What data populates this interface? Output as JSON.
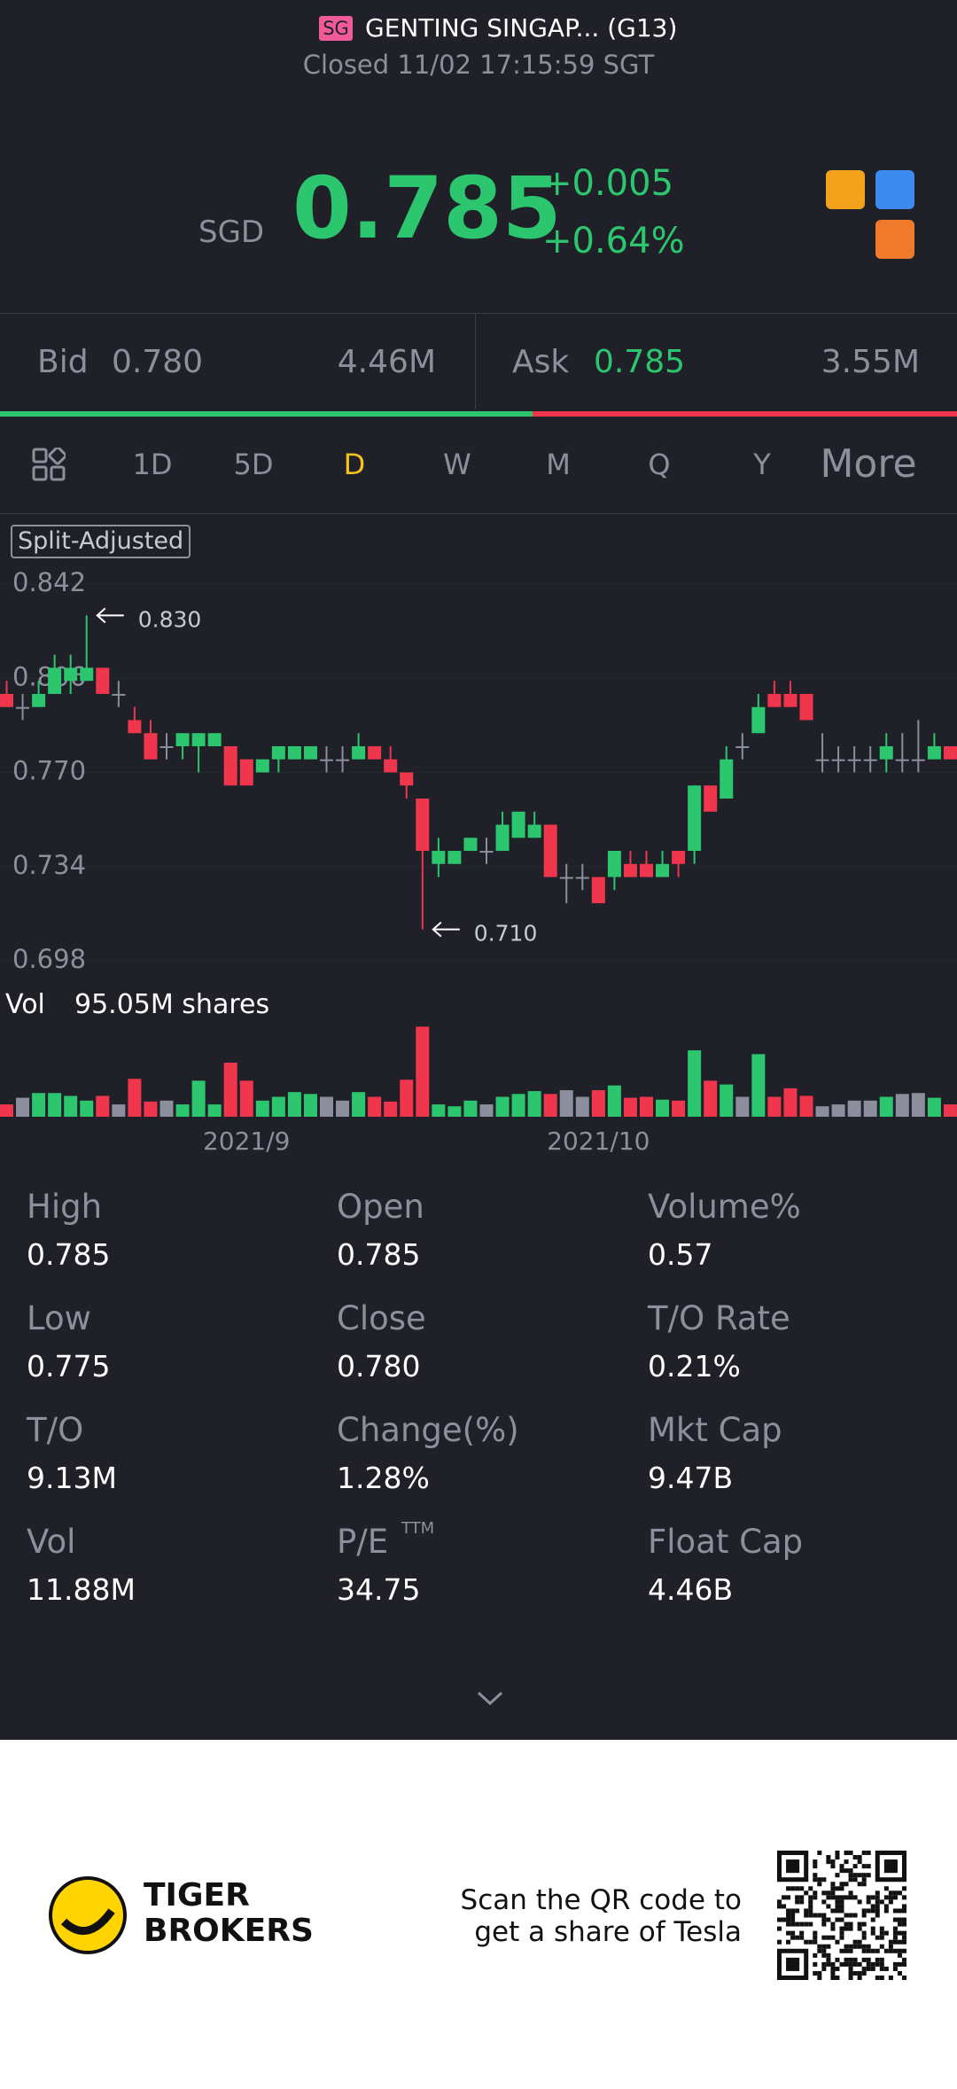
{
  "header": {
    "exchange": "SG",
    "title": "GENTING SINGAP... (G13)",
    "status": "Closed 11/02 17:15:59 SGT"
  },
  "quote": {
    "currency": "SGD",
    "price": "0.785",
    "change": "+0.005",
    "change_pct": "+0.64%"
  },
  "order_book": {
    "bid_label": "Bid",
    "bid": "0.780",
    "bid_size": "4.46M",
    "ask_label": "Ask",
    "ask": "0.785",
    "ask_size": "3.55M"
  },
  "tabs": [
    "1D",
    "5D",
    "D",
    "W",
    "M",
    "Q",
    "Y",
    "More"
  ],
  "active_tab": 2,
  "chart": {
    "type": "candlestick",
    "badge": "Split-Adjusted",
    "ylim": [
      0.698,
      0.842
    ],
    "yticks": [
      {
        "value": 0.842,
        "label": "0.842"
      },
      {
        "value": 0.806,
        "label": "0.806"
      },
      {
        "value": 0.77,
        "label": "0.770"
      },
      {
        "value": 0.734,
        "label": "0.734"
      },
      {
        "value": 0.698,
        "label": "0.698"
      }
    ],
    "high_marker": {
      "value": 0.83,
      "label": "0.830"
    },
    "low_marker": {
      "value": 0.71,
      "label": "0.710"
    },
    "up_color": "#2cc66e",
    "down_color": "#f0364c",
    "flat_color": "#8b8e9c",
    "categories": [
      null,
      null,
      null,
      null,
      null,
      null,
      null,
      null,
      null,
      null,
      null,
      null,
      null,
      null,
      null,
      "2021/9",
      null,
      null,
      null,
      null,
      null,
      null,
      null,
      null,
      null,
      null,
      null,
      null,
      null,
      null,
      null,
      null,
      null,
      null,
      null,
      null,
      null,
      "2021/10",
      null,
      null,
      null,
      null,
      null,
      null,
      null,
      null,
      null,
      null,
      null,
      null,
      null,
      null,
      null,
      null,
      null,
      null,
      null,
      null,
      null,
      null
    ],
    "open": [
      0.8,
      0.795,
      0.795,
      0.8,
      0.805,
      0.805,
      0.81,
      0.8,
      0.79,
      0.785,
      0.78,
      0.78,
      0.78,
      0.78,
      0.78,
      0.775,
      0.77,
      0.775,
      0.775,
      0.775,
      0.775,
      0.775,
      0.775,
      0.78,
      0.775,
      0.77,
      0.76,
      0.735,
      0.735,
      0.74,
      0.74,
      0.74,
      0.745,
      0.745,
      0.75,
      0.73,
      0.73,
      0.73,
      0.73,
      0.735,
      0.735,
      0.73,
      0.74,
      0.74,
      0.765,
      0.76,
      0.78,
      0.785,
      0.8,
      0.8,
      0.8,
      0.775,
      0.775,
      0.775,
      0.775,
      0.775,
      0.775,
      0.775,
      0.775,
      0.78
    ],
    "high": [
      0.805,
      0.8,
      0.805,
      0.815,
      0.815,
      0.83,
      0.81,
      0.805,
      0.795,
      0.79,
      0.785,
      0.785,
      0.785,
      0.785,
      0.78,
      0.775,
      0.775,
      0.78,
      0.78,
      0.78,
      0.78,
      0.78,
      0.785,
      0.78,
      0.78,
      0.77,
      0.76,
      0.745,
      0.74,
      0.745,
      0.745,
      0.755,
      0.755,
      0.755,
      0.75,
      0.735,
      0.735,
      0.73,
      0.74,
      0.74,
      0.74,
      0.74,
      0.74,
      0.765,
      0.765,
      0.78,
      0.785,
      0.8,
      0.805,
      0.805,
      0.8,
      0.785,
      0.78,
      0.78,
      0.78,
      0.785,
      0.785,
      0.79,
      0.785,
      0.78
    ],
    "low": [
      0.795,
      0.79,
      0.795,
      0.8,
      0.8,
      0.805,
      0.8,
      0.795,
      0.785,
      0.775,
      0.775,
      0.775,
      0.77,
      0.78,
      0.765,
      0.765,
      0.77,
      0.77,
      0.775,
      0.775,
      0.77,
      0.77,
      0.775,
      0.775,
      0.77,
      0.76,
      0.71,
      0.73,
      0.735,
      0.74,
      0.735,
      0.74,
      0.745,
      0.745,
      0.73,
      0.72,
      0.725,
      0.72,
      0.725,
      0.73,
      0.73,
      0.73,
      0.73,
      0.735,
      0.755,
      0.76,
      0.775,
      0.785,
      0.795,
      0.795,
      0.79,
      0.77,
      0.77,
      0.77,
      0.77,
      0.77,
      0.77,
      0.77,
      0.775,
      0.775
    ],
    "close": [
      0.795,
      0.795,
      0.8,
      0.81,
      0.81,
      0.81,
      0.8,
      0.8,
      0.785,
      0.775,
      0.78,
      0.785,
      0.785,
      0.785,
      0.765,
      0.765,
      0.775,
      0.78,
      0.78,
      0.78,
      0.775,
      0.775,
      0.78,
      0.775,
      0.77,
      0.765,
      0.74,
      0.74,
      0.74,
      0.745,
      0.74,
      0.75,
      0.755,
      0.75,
      0.73,
      0.73,
      0.73,
      0.72,
      0.74,
      0.73,
      0.73,
      0.735,
      0.735,
      0.765,
      0.755,
      0.775,
      0.78,
      0.795,
      0.795,
      0.795,
      0.79,
      0.775,
      0.775,
      0.775,
      0.775,
      0.78,
      0.775,
      0.775,
      0.78,
      0.775
    ],
    "volume_label": "Vol",
    "volume_text": "95.05M shares",
    "volume_lim": [
      0,
      100
    ],
    "volume": [
      13,
      20,
      25,
      25,
      22,
      17,
      22,
      13,
      40,
      16,
      17,
      13,
      38,
      13,
      57,
      38,
      17,
      21,
      26,
      24,
      21,
      17,
      26,
      21,
      16,
      39,
      95,
      13,
      11,
      17,
      13,
      21,
      24,
      27,
      24,
      28,
      21,
      28,
      33,
      20,
      21,
      18,
      17,
      70,
      38,
      34,
      21,
      66,
      21,
      30,
      22,
      11,
      13,
      17,
      17,
      21,
      24,
      25,
      20,
      13
    ]
  },
  "stats": [
    {
      "label": "High",
      "value": "0.785"
    },
    {
      "label": "Open",
      "value": "0.785"
    },
    {
      "label": "Volume%",
      "value": "0.57"
    },
    {
      "label": "Low",
      "value": "0.775"
    },
    {
      "label": "Close",
      "value": "0.780"
    },
    {
      "label": "T/O Rate",
      "value": "0.21%"
    },
    {
      "label": "T/O",
      "value": "9.13M"
    },
    {
      "label": "Change(%)",
      "value": "1.28%"
    },
    {
      "label": "Mkt Cap",
      "value": "9.47B"
    },
    {
      "label": "Vol",
      "value": "11.88M"
    },
    {
      "label": "P/E",
      "sup": "TTM",
      "value": "34.75"
    },
    {
      "label": "Float Cap",
      "value": "4.46B"
    }
  ],
  "footer": {
    "brand": [
      "TIGER",
      "BROKERS"
    ],
    "cta": [
      "Scan the QR code to",
      "get a share of Tesla"
    ]
  }
}
